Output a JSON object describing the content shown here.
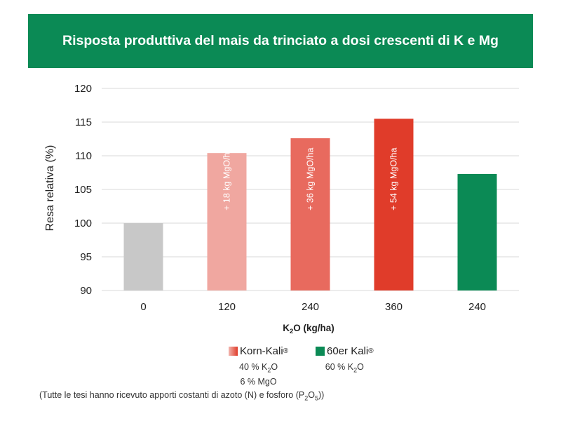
{
  "title": "Risposta produttiva del mais da trinciato a dosi crescenti di K e Mg",
  "chart_data": {
    "type": "bar",
    "categories": [
      "0",
      "120",
      "240",
      "360",
      "240"
    ],
    "values": [
      100,
      110.4,
      112.6,
      115.5,
      107.3
    ],
    "bar_colors": [
      "#c8c8c8",
      "#f0a7a0",
      "#e86a5e",
      "#e03c2a",
      "#0b8a55"
    ],
    "bar_labels": [
      "",
      "+ 18 kg MgO/ha",
      "+ 36 kg MgO/ha",
      "+ 54 kg MgO/ha",
      ""
    ],
    "ylabel": "Resa relativa (%)",
    "xlabel_main": "K",
    "xlabel_sub": "2",
    "xlabel_rest": "O (kg/ha)",
    "ylim": [
      90,
      120
    ],
    "yticks": [
      90,
      95,
      100,
      105,
      110,
      115,
      120
    ],
    "grid": true
  },
  "legend": {
    "korn": {
      "name": "Korn-Kali",
      "reg": "®",
      "line1_pre": "40 % K",
      "line1_sub": "2",
      "line1_post": "O",
      "line2": "6 % MgO",
      "color_from": "#f2b5ae",
      "color_to": "#e03c2a"
    },
    "sechzig": {
      "name": "60er Kali",
      "reg": "®",
      "line1_pre": "60 % K",
      "line1_sub": "2",
      "line1_post": "O",
      "color": "#0b8a55"
    }
  },
  "footnote": {
    "pre": "(Tutte le tesi hanno ricevuto apporti costanti di azoto (N) e fosforo (P",
    "sub1": "2",
    "mid": "O",
    "sub2": "5",
    "post": "))"
  }
}
